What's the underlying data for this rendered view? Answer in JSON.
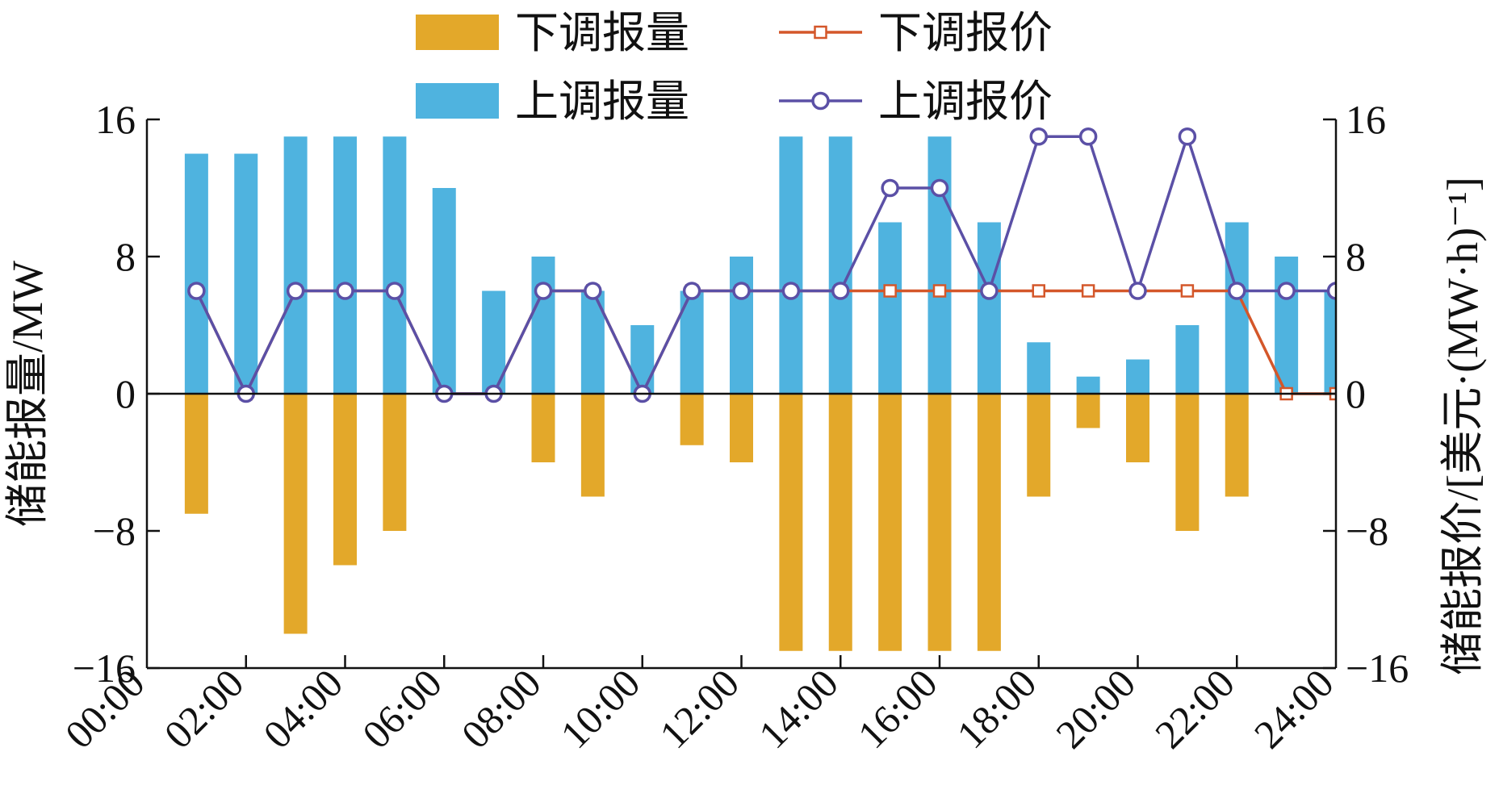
{
  "chart_data": {
    "type": "bar",
    "x": [
      "01:00",
      "02:00",
      "03:00",
      "04:00",
      "05:00",
      "06:00",
      "07:00",
      "08:00",
      "09:00",
      "10:00",
      "11:00",
      "12:00",
      "13:00",
      "14:00",
      "15:00",
      "16:00",
      "17:00",
      "18:00",
      "19:00",
      "20:00",
      "21:00",
      "22:00",
      "23:00",
      "24:00"
    ],
    "x_tick_labels": [
      "00:00",
      "02:00",
      "04:00",
      "06:00",
      "08:00",
      "10:00",
      "12:00",
      "14:00",
      "16:00",
      "18:00",
      "20:00",
      "22:00",
      "24:00"
    ],
    "left_axis": {
      "label": "储能报量/MW",
      "ylim": [
        -16,
        16
      ],
      "ticks": [
        "16",
        "8",
        "0",
        "−8",
        "−16"
      ],
      "tick_values": [
        16,
        8,
        0,
        -8,
        -16
      ]
    },
    "right_axis": {
      "label": "储能报价/[美元·(MW·h)⁻¹]",
      "ylim": [
        -16,
        16
      ],
      "ticks": [
        "16",
        "8",
        "0",
        "−8",
        "−16"
      ],
      "tick_values": [
        16,
        8,
        0,
        -8,
        -16
      ]
    },
    "series": [
      {
        "name": "下调报量",
        "kind": "bar",
        "axis": "left",
        "color": "#E3A82A",
        "values": [
          -7,
          0,
          -14,
          -10,
          -8,
          0,
          0,
          -4,
          -6,
          0,
          -3,
          -4,
          -15,
          -15,
          -15,
          -15,
          -15,
          -6,
          -2,
          -4,
          -8,
          -6,
          0,
          0
        ]
      },
      {
        "name": "上调报量",
        "kind": "bar",
        "axis": "left",
        "color": "#4FB3DF",
        "values": [
          14,
          14,
          15,
          15,
          15,
          12,
          6,
          8,
          6,
          4,
          6,
          8,
          15,
          15,
          10,
          15,
          10,
          3,
          1,
          2,
          4,
          10,
          8,
          6
        ]
      },
      {
        "name": "下调报价",
        "kind": "line",
        "axis": "right",
        "color": "#D4572A",
        "marker": "square",
        "values": [
          6,
          0,
          6,
          6,
          6,
          0,
          0,
          6,
          6,
          0,
          6,
          6,
          6,
          6,
          6,
          6,
          6,
          6,
          6,
          6,
          6,
          6,
          0,
          0
        ]
      },
      {
        "name": "上调报价",
        "kind": "line",
        "axis": "right",
        "color": "#5B50A6",
        "marker": "circle",
        "values": [
          6,
          0,
          6,
          6,
          6,
          0,
          0,
          6,
          6,
          0,
          6,
          6,
          6,
          6,
          12,
          12,
          6,
          15,
          15,
          6,
          15,
          6,
          6,
          6
        ]
      }
    ],
    "legend": "top-center",
    "grid": false
  }
}
